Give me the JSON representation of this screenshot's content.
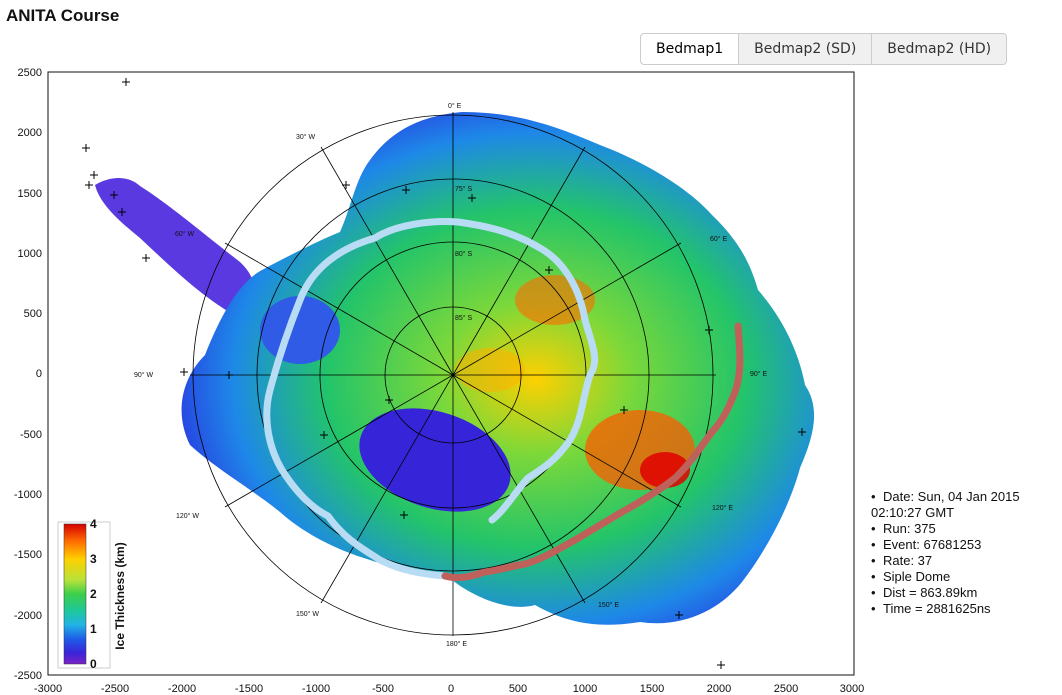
{
  "page": {
    "title": "ANITA Course"
  },
  "tabs": [
    {
      "label": "Bedmap1",
      "active": true
    },
    {
      "label": "Bedmap2 (SD)",
      "active": false
    },
    {
      "label": "Bedmap2 (HD)",
      "active": false
    }
  ],
  "map": {
    "x_ticks": [
      "-3000",
      "-2500",
      "-2000",
      "-1500",
      "-1000",
      "-500",
      "0",
      "500",
      "1000",
      "1500",
      "2000",
      "2500",
      "3000"
    ],
    "y_ticks": [
      "2500",
      "2000",
      "1500",
      "1000",
      "500",
      "0",
      "-500",
      "-1000",
      "-1500",
      "-2000",
      "-2500"
    ],
    "lon_labels": [
      "0° E",
      "30° W",
      "60° W",
      "90° W",
      "120° W",
      "150° W",
      "180° E",
      "150° E",
      "120° E",
      "90° E",
      "60° E"
    ],
    "lat_labels": [
      "75° S",
      "80° S",
      "85° S"
    ],
    "colorbar": {
      "label": "Ice Thickness (km)",
      "ticks": [
        "4",
        "3",
        "2",
        "1",
        "0"
      ]
    },
    "colors": {
      "flight_path_past": "#b9dcf5",
      "flight_path_recent": "#c0605a"
    }
  },
  "info": {
    "date": "Date: Sun, 04 Jan 2015",
    "time_gmt": "02:10:27 GMT",
    "run": "Run: 375",
    "event": "Event: 67681253",
    "rate": "Rate: 37",
    "location": "Siple Dome",
    "dist": "Dist = 863.89km",
    "time_ns": "Time = 2881625ns"
  }
}
